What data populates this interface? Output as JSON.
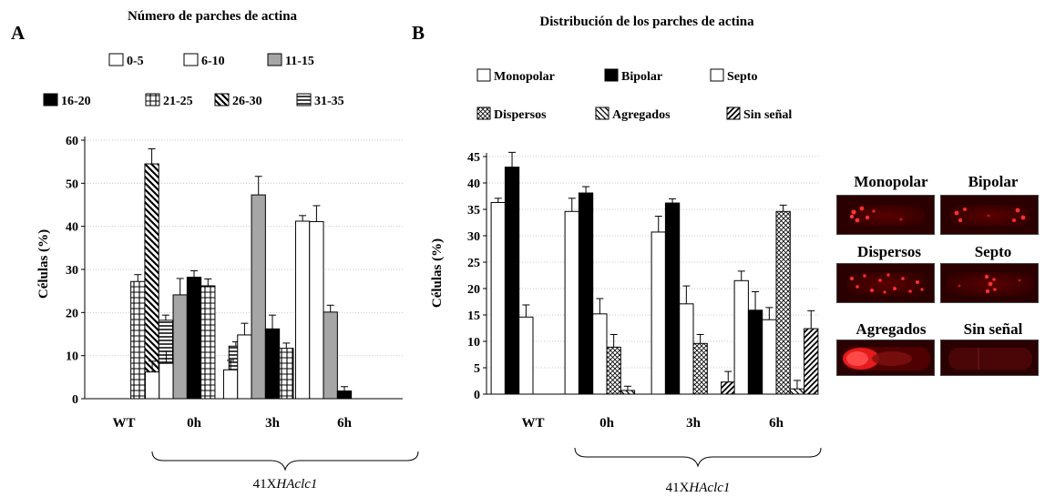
{
  "panelA": {
    "letter": "A",
    "title": "Número de parches de actina",
    "ylabel": "Células (%)",
    "group_label": "41X",
    "group_label_italic": "HAclc1",
    "legend": [
      "0-5",
      "6-10",
      "11-15",
      "16-20",
      "21-25",
      "26-30",
      "31-35"
    ],
    "chart_data": {
      "type": "bar",
      "categories": [
        "WT",
        "0h",
        "3h",
        "6h"
      ],
      "ylim": [
        0,
        60
      ],
      "yticks": [
        0,
        10,
        20,
        30,
        40,
        50,
        60
      ],
      "grid": true,
      "series": [
        {
          "name": "0-5",
          "values": [
            0,
            6.2,
            6.7,
            41.2
          ],
          "errors": [
            0,
            2.5,
            2.2,
            1.3
          ]
        },
        {
          "name": "6-10",
          "values": [
            0,
            8.2,
            14.8,
            41.1
          ],
          "errors": [
            0,
            2.8,
            2.7,
            3.7
          ]
        },
        {
          "name": "11-15",
          "values": [
            0,
            24.1,
            47.3,
            20.1
          ],
          "errors": [
            0,
            3.8,
            4.3,
            1.6
          ]
        },
        {
          "name": "16-20",
          "values": [
            0,
            28.2,
            16.2,
            1.8
          ],
          "errors": [
            0,
            1.5,
            3.2,
            1.0
          ]
        },
        {
          "name": "21-25",
          "values": [
            27.2,
            26.2,
            11.7,
            0
          ],
          "errors": [
            1.6,
            1.6,
            1.2,
            0
          ]
        },
        {
          "name": "26-30",
          "values": [
            54.5,
            0,
            0,
            0
          ],
          "errors": [
            3.5,
            0,
            0,
            0
          ]
        },
        {
          "name": "31-35",
          "values": [
            18.2,
            12.2,
            8.2,
            0
          ],
          "errors": [
            1.2,
            1.0,
            0.6,
            0
          ]
        }
      ]
    }
  },
  "panelB": {
    "letter": "B",
    "title": "Distribución de los parches de actina",
    "ylabel": "Células (%)",
    "group_label": "41X",
    "group_label_italic": "HAclc1",
    "legend": [
      "Monopolar",
      "Bipolar",
      "Septo",
      "Dispersos",
      "Agregados",
      "Sin señal"
    ],
    "chart_data": {
      "type": "bar",
      "categories": [
        "WT",
        "0h",
        "3h",
        "6h"
      ],
      "ylim": [
        0,
        45
      ],
      "yticks": [
        0,
        5,
        10,
        15,
        20,
        25,
        30,
        35,
        40,
        45
      ],
      "grid": true,
      "series": [
        {
          "name": "Monopolar",
          "values": [
            36.3,
            34.6,
            30.7,
            21.5
          ],
          "errors": [
            0.8,
            2.5,
            3.0,
            1.8
          ]
        },
        {
          "name": "Bipolar",
          "values": [
            43.0,
            38.1,
            36.2,
            15.9
          ],
          "errors": [
            2.8,
            1.2,
            0.8,
            3.5
          ]
        },
        {
          "name": "Septo",
          "values": [
            14.6,
            15.2,
            17.1,
            14.1
          ],
          "errors": [
            2.3,
            2.9,
            3.4,
            2.3
          ]
        },
        {
          "name": "Dispersos",
          "values": [
            0,
            8.9,
            9.6,
            34.6
          ],
          "errors": [
            0,
            2.4,
            1.7,
            1.2
          ]
        },
        {
          "name": "Agregados",
          "values": [
            0,
            0.7,
            0,
            1.0
          ],
          "errors": [
            0,
            0.8,
            0,
            1.6
          ]
        },
        {
          "name": "Sin señal",
          "values": [
            0,
            0,
            2.3,
            12.4
          ],
          "errors": [
            0,
            0,
            2.0,
            3.4
          ]
        }
      ]
    }
  },
  "micrographs": [
    {
      "label": "Monopolar"
    },
    {
      "label": "Bipolar"
    },
    {
      "label": "Dispersos"
    },
    {
      "label": "Septo"
    },
    {
      "label": "Agregados"
    },
    {
      "label": "Sin señal"
    }
  ]
}
